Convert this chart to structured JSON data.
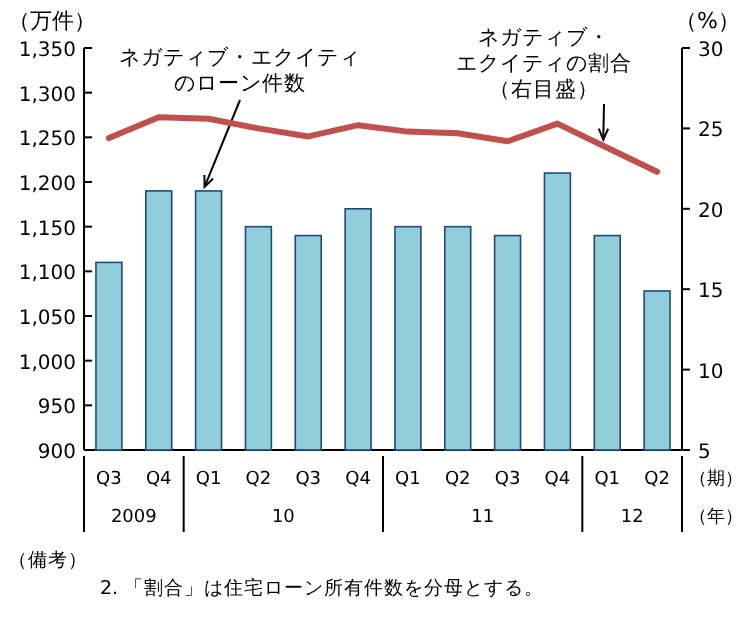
{
  "chart_data": {
    "type": "bar",
    "categories": [
      "Q3",
      "Q4",
      "Q1",
      "Q2",
      "Q3",
      "Q4",
      "Q1",
      "Q2",
      "Q3",
      "Q4",
      "Q1",
      "Q2"
    ],
    "series": [
      {
        "name": "ネガティブ・エクイティのローン件数",
        "color": "#92cddc",
        "values": [
          1110,
          1190,
          1190,
          1150,
          1140,
          1170,
          1150,
          1150,
          1140,
          1210,
          1140,
          1078
        ]
      },
      {
        "name": "ネガティブ・エクイティの割合（右目盛）",
        "type": "line",
        "axis": "y2",
        "color": "#c0504d",
        "values": [
          24.4,
          25.7,
          25.6,
          25.0,
          24.5,
          25.2,
          24.8,
          24.7,
          24.2,
          25.3,
          23.8,
          22.3
        ]
      }
    ],
    "ylabel": "（万件）",
    "y2label": "（%）",
    "xlabel": "（期）",
    "ylim": [
      900,
      1350
    ],
    "yticks": [
      900,
      950,
      {
        "value": 1000,
        "label": "1,000"
      },
      {
        "value": 1050,
        "label": "1,050"
      },
      {
        "value": 1100,
        "label": "1,100"
      },
      {
        "value": 1150,
        "label": "1,150"
      },
      {
        "value": 1200,
        "label": "1,200"
      },
      {
        "value": 1250,
        "label": "1,250"
      },
      {
        "value": 1300,
        "label": "1,300"
      },
      {
        "value": 1350,
        "label": "1,350"
      }
    ],
    "y2lim": [
      5,
      30
    ],
    "y2ticks": [
      5,
      10,
      15,
      20,
      25,
      30
    ],
    "annotations": [
      "2009",
      "10",
      "11",
      "12",
      "（年）",
      "（備考）",
      "2. 「割合」は住宅ローン所有件数を分母とする。"
    ],
    "grid": false,
    "legend": false
  }
}
